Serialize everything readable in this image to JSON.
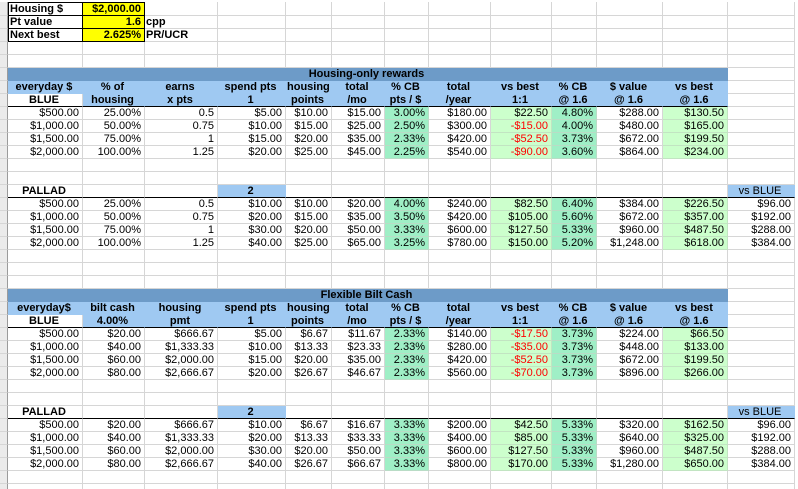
{
  "colors": {
    "section_band": "#6D9BC8",
    "column_header": "#9FC9F2",
    "highlight_yellow": "#FFFF00",
    "mint_green": "#9FEFC6",
    "pale_green": "#CCFFCC",
    "negative_red": "#FF0000",
    "selected_blue": "#9FC9F2"
  },
  "settings": {
    "rows": [
      {
        "label": "Housing $",
        "value": "$2,000.00",
        "suffix": ""
      },
      {
        "label": "Pt value",
        "value": "1.6",
        "suffix": "cpp"
      },
      {
        "label": "Next best",
        "value": "2.625%",
        "suffix": "PR/UCR"
      }
    ]
  },
  "sections": [
    {
      "title": "Housing-only rewards",
      "header_line1": [
        "everyday $",
        "% of",
        "earns",
        "spend pts",
        "housing",
        "total",
        "% CB",
        "total",
        "vs best",
        "% CB",
        "$ value",
        "vs best"
      ],
      "header_line2": [
        "BLUE",
        "housing",
        "x pts",
        "1",
        "points",
        "/mo",
        "pts / $",
        "/year",
        "1:1",
        "@ 1.6",
        "@ 1.6",
        "@ 1.6"
      ],
      "blue_rows": [
        [
          "$500.00",
          "25.00%",
          "0.5",
          "$5.00",
          "$10.00",
          "$15.00",
          "3.00%",
          "$180.00",
          "$22.50",
          "4.80%",
          "$288.00",
          "$130.50"
        ],
        [
          "$1,000.00",
          "50.00%",
          "0.75",
          "$10.00",
          "$15.00",
          "$25.00",
          "2.50%",
          "$300.00",
          "-$15.00",
          "4.00%",
          "$480.00",
          "$165.00"
        ],
        [
          "$1,500.00",
          "75.00%",
          "1",
          "$15.00",
          "$20.00",
          "$35.00",
          "2.33%",
          "$420.00",
          "-$52.50",
          "3.73%",
          "$672.00",
          "$199.50"
        ],
        [
          "$2,000.00",
          "100.00%",
          "1.25",
          "$20.00",
          "$25.00",
          "$45.00",
          "2.25%",
          "$540.00",
          "-$90.00",
          "3.60%",
          "$864.00",
          "$234.00"
        ]
      ],
      "pallad_label": "PALLAD",
      "pallad_spend_pts": "2",
      "vs_blue_label": "vs BLUE",
      "pallad_rows": [
        [
          "$500.00",
          "25.00%",
          "0.5",
          "$10.00",
          "$10.00",
          "$20.00",
          "4.00%",
          "$240.00",
          "$82.50",
          "6.40%",
          "$384.00",
          "$226.50",
          "$96.00"
        ],
        [
          "$1,000.00",
          "50.00%",
          "0.75",
          "$20.00",
          "$15.00",
          "$35.00",
          "3.50%",
          "$420.00",
          "$105.00",
          "5.60%",
          "$672.00",
          "$357.00",
          "$192.00"
        ],
        [
          "$1,500.00",
          "75.00%",
          "1",
          "$30.00",
          "$20.00",
          "$50.00",
          "3.33%",
          "$600.00",
          "$127.50",
          "5.33%",
          "$960.00",
          "$487.50",
          "$288.00"
        ],
        [
          "$2,000.00",
          "100.00%",
          "1.25",
          "$40.00",
          "$25.00",
          "$65.00",
          "3.25%",
          "$780.00",
          "$150.00",
          "5.20%",
          "$1,248.00",
          "$618.00",
          "$384.00"
        ]
      ]
    },
    {
      "title": "Flexible Bilt Cash",
      "header_line1": [
        "everyday$",
        "bilt cash",
        "housing",
        "spend pts",
        "housing",
        "total",
        "% CB",
        "total",
        "vs best",
        "% CB",
        "$ value",
        "vs best"
      ],
      "header_line2": [
        "BLUE",
        "4.00%",
        "pmt",
        "1",
        "points",
        "/mo",
        "pts / $",
        "/year",
        "1:1",
        "@ 1.6",
        "@ 1.6",
        "@ 1.6"
      ],
      "blue_rows": [
        [
          "$500.00",
          "$20.00",
          "$666.67",
          "$5.00",
          "$6.67",
          "$11.67",
          "2.33%",
          "$140.00",
          "-$17.50",
          "3.73%",
          "$224.00",
          "$66.50"
        ],
        [
          "$1,000.00",
          "$40.00",
          "$1,333.33",
          "$10.00",
          "$13.33",
          "$23.33",
          "2.33%",
          "$280.00",
          "-$35.00",
          "3.73%",
          "$448.00",
          "$133.00"
        ],
        [
          "$1,500.00",
          "$60.00",
          "$2,000.00",
          "$15.00",
          "$20.00",
          "$35.00",
          "2.33%",
          "$420.00",
          "-$52.50",
          "3.73%",
          "$672.00",
          "$199.50"
        ],
        [
          "$2,000.00",
          "$80.00",
          "$2,666.67",
          "$20.00",
          "$26.67",
          "$46.67",
          "2.33%",
          "$560.00",
          "-$70.00",
          "3.73%",
          "$896.00",
          "$266.00"
        ]
      ],
      "pallad_label": "PALLAD",
      "pallad_spend_pts": "2",
      "vs_blue_label": "vs BLUE",
      "pallad_rows": [
        [
          "$500.00",
          "$20.00",
          "$666.67",
          "$10.00",
          "$6.67",
          "$16.67",
          "3.33%",
          "$200.00",
          "$42.50",
          "5.33%",
          "$320.00",
          "$162.50",
          "$96.00"
        ],
        [
          "$1,000.00",
          "$40.00",
          "$1,333.33",
          "$20.00",
          "$13.33",
          "$33.33",
          "3.33%",
          "$400.00",
          "$85.00",
          "5.33%",
          "$640.00",
          "$325.00",
          "$192.00"
        ],
        [
          "$1,500.00",
          "$60.00",
          "$2,000.00",
          "$30.00",
          "$20.00",
          "$50.00",
          "3.33%",
          "$600.00",
          "$127.50",
          "5.33%",
          "$960.00",
          "$487.50",
          "$288.00"
        ],
        [
          "$2,000.00",
          "$80.00",
          "$2,666.67",
          "$40.00",
          "$26.67",
          "$66.67",
          "3.33%",
          "$800.00",
          "$170.00",
          "5.33%",
          "$1,280.00",
          "$650.00",
          "$384.00"
        ]
      ]
    }
  ]
}
